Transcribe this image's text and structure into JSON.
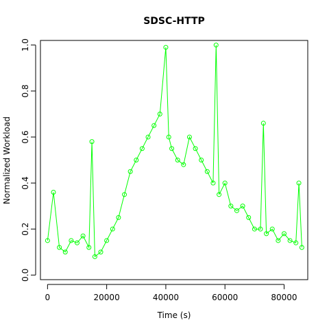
{
  "chart_data": {
    "type": "line",
    "title": "SDSC-HTTP",
    "xlabel": "Time (s)",
    "ylabel": "Normalized Workload",
    "xlim": [
      -2400,
      88000
    ],
    "ylim": [
      -0.02,
      1.02
    ],
    "x_ticks": [
      0,
      20000,
      40000,
      60000,
      80000
    ],
    "x_tick_labels": [
      "0",
      "20000",
      "40000",
      "60000",
      "80000"
    ],
    "y_ticks": [
      0.0,
      0.2,
      0.4,
      0.6,
      0.8,
      1.0
    ],
    "y_tick_labels": [
      "0.0",
      "0.2",
      "0.4",
      "0.6",
      "0.8",
      "1.0"
    ],
    "grid": false,
    "legend": "none",
    "series_color": "#00ff00",
    "marker": "open-circle",
    "series": [
      {
        "x": [
          0,
          2000,
          4000,
          6000,
          8000,
          10000,
          12000,
          14000,
          15000,
          16000,
          18000,
          20000,
          22000,
          24000,
          26000,
          28000,
          30000,
          32000,
          34000,
          36000,
          38000,
          40000,
          41000,
          42000,
          44000,
          46000,
          48000,
          50000,
          52000,
          54000,
          56000,
          57000,
          58000,
          60000,
          62000,
          64000,
          66000,
          68000,
          70000,
          72000,
          73000,
          74000,
          76000,
          78000,
          80000,
          82000,
          84000,
          85000,
          86000
        ],
        "y": [
          0.15,
          0.36,
          0.12,
          0.1,
          0.15,
          0.14,
          0.17,
          0.12,
          0.58,
          0.08,
          0.1,
          0.15,
          0.2,
          0.25,
          0.35,
          0.45,
          0.5,
          0.55,
          0.6,
          0.65,
          0.7,
          0.99,
          0.6,
          0.55,
          0.5,
          0.48,
          0.6,
          0.55,
          0.5,
          0.45,
          0.4,
          1.0,
          0.35,
          0.4,
          0.3,
          0.28,
          0.3,
          0.25,
          0.2,
          0.2,
          0.66,
          0.18,
          0.2,
          0.15,
          0.18,
          0.15,
          0.14,
          0.4,
          0.12
        ]
      }
    ]
  }
}
